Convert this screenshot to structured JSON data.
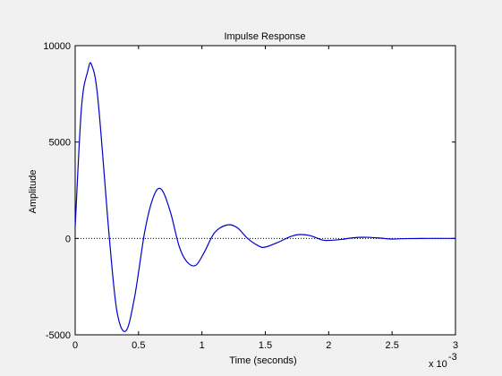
{
  "chart_data": {
    "type": "line",
    "title": "Impulse Response",
    "xlabel": "Time (seconds)",
    "ylabel": "Amplitude",
    "x_exponent_base": "x 10",
    "x_exponent_power": "-3",
    "xlim": [
      0,
      3
    ],
    "ylim": [
      -5000,
      10000
    ],
    "x_ticks": [
      0,
      0.5,
      1,
      1.5,
      2,
      2.5,
      3
    ],
    "x_tick_labels": [
      "0",
      "0.5",
      "1",
      "1.5",
      "2",
      "2.5",
      "3"
    ],
    "y_ticks": [
      -5000,
      0,
      5000,
      10000
    ],
    "y_tick_labels": [
      "-5000",
      "0",
      "5000",
      "10000"
    ],
    "grid": false,
    "zero_line": "dotted",
    "series": [
      {
        "color": "#0000cc",
        "x": [
          0,
          0.05,
          0.1,
          0.13,
          0.18,
          0.27,
          0.33,
          0.4,
          0.47,
          0.55,
          0.62,
          0.68,
          0.75,
          0.82,
          0.88,
          0.95,
          1.02,
          1.1,
          1.2,
          1.28,
          1.36,
          1.45,
          1.5,
          1.6,
          1.7,
          1.77,
          1.85,
          1.95,
          2.0,
          2.1,
          2.2,
          2.3,
          2.4,
          2.5,
          2.6,
          2.8,
          3.0
        ],
        "y": [
          600,
          6800,
          8700,
          9000,
          7200,
          0,
          -3800,
          -4800,
          -3000,
          400,
          2200,
          2550,
          1400,
          -400,
          -1200,
          -1400,
          -700,
          300,
          700,
          550,
          0,
          -400,
          -450,
          -200,
          100,
          200,
          150,
          -80,
          -100,
          -50,
          40,
          60,
          20,
          -30,
          -10,
          0,
          0
        ]
      }
    ]
  }
}
